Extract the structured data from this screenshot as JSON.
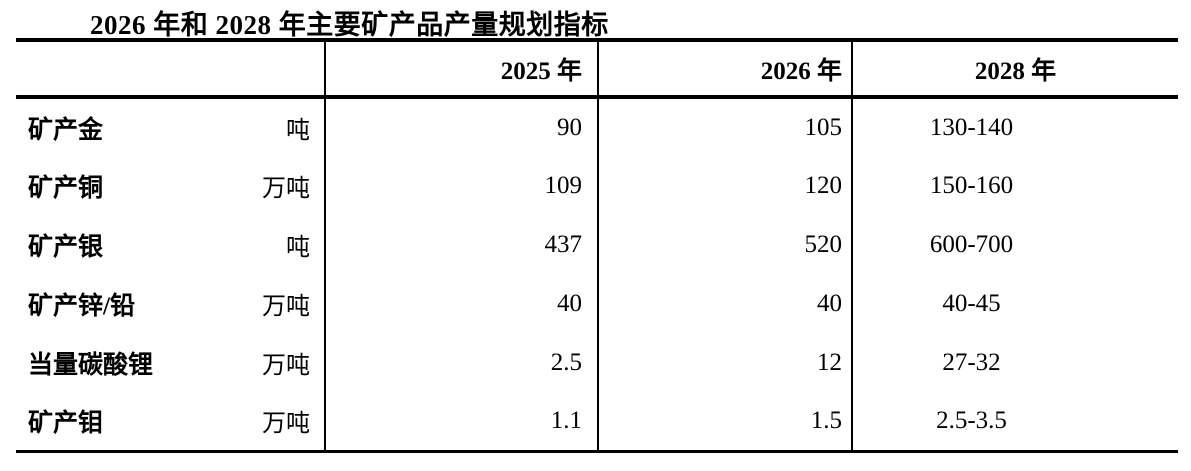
{
  "colors": {
    "background": "#ffffff",
    "text": "#000000",
    "border": "#000000"
  },
  "title": "2026 年和 2028 年主要矿产品产量规划指标",
  "table": {
    "headers": {
      "col1": "",
      "col2": "2025 年",
      "col3": "2026 年",
      "col4": "2028 年"
    },
    "rows": [
      {
        "name": "矿产金",
        "unit": "吨",
        "y2025": "90",
        "y2026": "105",
        "y2028": "130-140"
      },
      {
        "name": "矿产铜",
        "unit": "万吨",
        "y2025": "109",
        "y2026": "120",
        "y2028": "150-160"
      },
      {
        "name": "矿产银",
        "unit": "吨",
        "y2025": "437",
        "y2026": "520",
        "y2028": "600-700"
      },
      {
        "name": "矿产锌/铅",
        "unit": "万吨",
        "y2025": "40",
        "y2026": "40",
        "y2028": "40-45"
      },
      {
        "name": "当量碳酸锂",
        "unit": "万吨",
        "y2025": "2.5",
        "y2026": "12",
        "y2028": "27-32"
      },
      {
        "name": "矿产钼",
        "unit": "万吨",
        "y2025": "1.1",
        "y2026": "1.5",
        "y2028": "2.5-3.5"
      }
    ]
  }
}
